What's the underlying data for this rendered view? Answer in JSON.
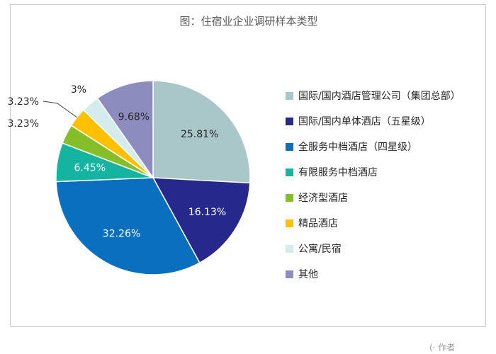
{
  "chart_data": {
    "type": "pie",
    "title": "图：住宿业企业调研样本类型",
    "categories": [
      "国际/国内酒店管理公司（集团总部）",
      "国际/国内单体酒店（五星级）",
      "全服务中档酒店（四星级）",
      "有限服务中档酒店",
      "经济型酒店",
      "精品酒店",
      "公寓/民宿",
      "其他"
    ],
    "values": [
      25.81,
      16.13,
      32.26,
      6.45,
      3.23,
      3.23,
      3.0,
      9.68
    ],
    "data_labels": [
      "25.81%",
      "16.13%",
      "32.26%",
      "6.45%",
      "3.23%",
      "3.23%",
      "3%",
      "9.68%"
    ],
    "colors": [
      "#a9c6c8",
      "#27288b",
      "#0a6fbe",
      "#14b4a0",
      "#86be2a",
      "#ffc000",
      "#d5ecee",
      "#8d8cbf"
    ],
    "label_colors": [
      "#262626",
      "#ffffff",
      "#ffffff",
      "#ffffff",
      "#262626",
      "#262626",
      "#262626",
      "#262626"
    ],
    "legend_position": "right"
  },
  "watermark": "(· 作者"
}
